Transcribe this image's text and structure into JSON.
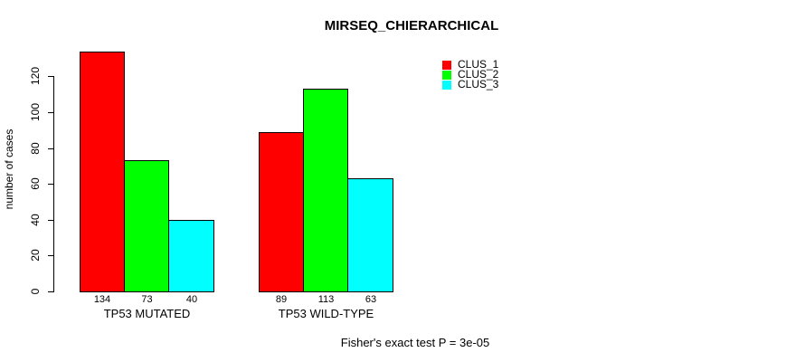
{
  "title": "MIRSEQ_CHIERARCHICAL",
  "ylabel": "number of cases",
  "footer": "Fisher's exact test P = 3e-05",
  "legend": [
    {
      "label": "CLUS_1",
      "color": "#ff0000"
    },
    {
      "label": "CLUS_2",
      "color": "#00ff00"
    },
    {
      "label": "CLUS_3",
      "color": "#00ffff"
    }
  ],
  "chart_data": {
    "type": "bar",
    "title": "MIRSEQ_CHIERARCHICAL",
    "xlabel": "",
    "ylabel": "number of cases",
    "categories": [
      "TP53 MUTATED",
      "TP53 WILD-TYPE"
    ],
    "series": [
      {
        "name": "CLUS_1",
        "color": "#ff0000",
        "values": [
          134,
          89
        ]
      },
      {
        "name": "CLUS_2",
        "color": "#00ff00",
        "values": [
          73,
          113
        ]
      },
      {
        "name": "CLUS_3",
        "color": "#00ffff",
        "values": [
          40,
          63
        ]
      }
    ],
    "value_labels": [
      [
        134,
        73,
        40
      ],
      [
        89,
        113,
        63
      ]
    ],
    "y_ticks": [
      0,
      20,
      40,
      60,
      80,
      100,
      120
    ],
    "ylim": [
      0,
      134
    ],
    "grid": false,
    "legend_position": "top-right",
    "annotation": "Fisher's exact test P = 3e-05"
  }
}
